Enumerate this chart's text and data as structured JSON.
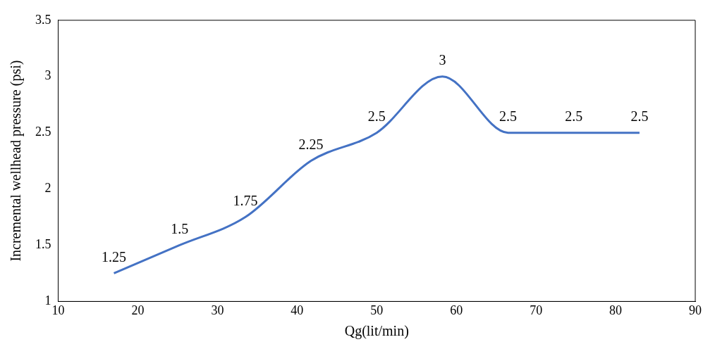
{
  "chart_data": {
    "type": "line",
    "xlabel": "Qg(lit/min)",
    "ylabel": "Incremental wellhead pressure (psi)",
    "x": [
      17,
      25.25,
      33.5,
      41.75,
      50,
      58.25,
      66.5,
      74.75,
      83
    ],
    "series": [
      {
        "color": "#4472c4",
        "values": [
          1.25,
          1.5,
          1.75,
          2.25,
          2.5,
          3,
          2.5,
          2.5,
          2.5
        ]
      }
    ],
    "xlim": [
      10,
      90
    ],
    "xticks": [
      10,
      20,
      30,
      40,
      50,
      60,
      70,
      80,
      90
    ],
    "ylim": [
      1,
      3.5
    ],
    "yticks": [
      1,
      1.5,
      2,
      2.5,
      3,
      3.5
    ],
    "grid": false,
    "legend": false,
    "marker": "none",
    "line_style": "solid",
    "data_labels": true
  }
}
